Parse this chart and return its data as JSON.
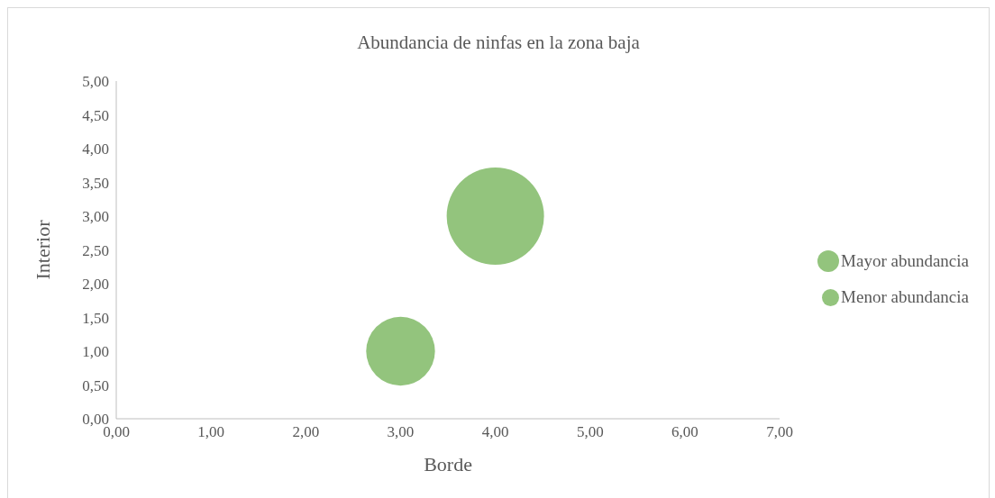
{
  "chart_data": {
    "type": "bubble",
    "title": "Abundancia de ninfas en la zona baja",
    "xlabel": "Borde",
    "ylabel": "Interior",
    "series": [
      {
        "name": "Mayor abundancia",
        "color": "#93c47d",
        "x": [
          4
        ],
        "values": [
          3
        ],
        "sizes": [
          1
        ]
      },
      {
        "name": "Menor abundancia",
        "color": "#93c47d",
        "x": [
          3
        ],
        "values": [
          1
        ],
        "sizes": [
          0.5
        ]
      }
    ],
    "xlim": [
      0,
      7
    ],
    "xticks": [
      {
        "value": 0,
        "label": "0,00"
      },
      {
        "value": 1,
        "label": "1,00"
      },
      {
        "value": 2,
        "label": "2,00"
      },
      {
        "value": 3,
        "label": "3,00"
      },
      {
        "value": 4,
        "label": "4,00"
      },
      {
        "value": 5,
        "label": "5,00"
      },
      {
        "value": 6,
        "label": "6,00"
      },
      {
        "value": 7,
        "label": "7,00"
      }
    ],
    "ylim": [
      0,
      5
    ],
    "yticks": [
      {
        "value": 0,
        "label": "0,00"
      },
      {
        "value": 0.5,
        "label": "0,50"
      },
      {
        "value": 1,
        "label": "1,00"
      },
      {
        "value": 1.5,
        "label": "1,50"
      },
      {
        "value": 2,
        "label": "2,00"
      },
      {
        "value": 2.5,
        "label": "2,50"
      },
      {
        "value": 3,
        "label": "3,00"
      },
      {
        "value": 3.5,
        "label": "3,50"
      },
      {
        "value": 4,
        "label": "4,00"
      },
      {
        "value": 4.5,
        "label": "4,50"
      },
      {
        "value": 5,
        "label": "5,00"
      }
    ],
    "grid": false,
    "legend": "right"
  }
}
